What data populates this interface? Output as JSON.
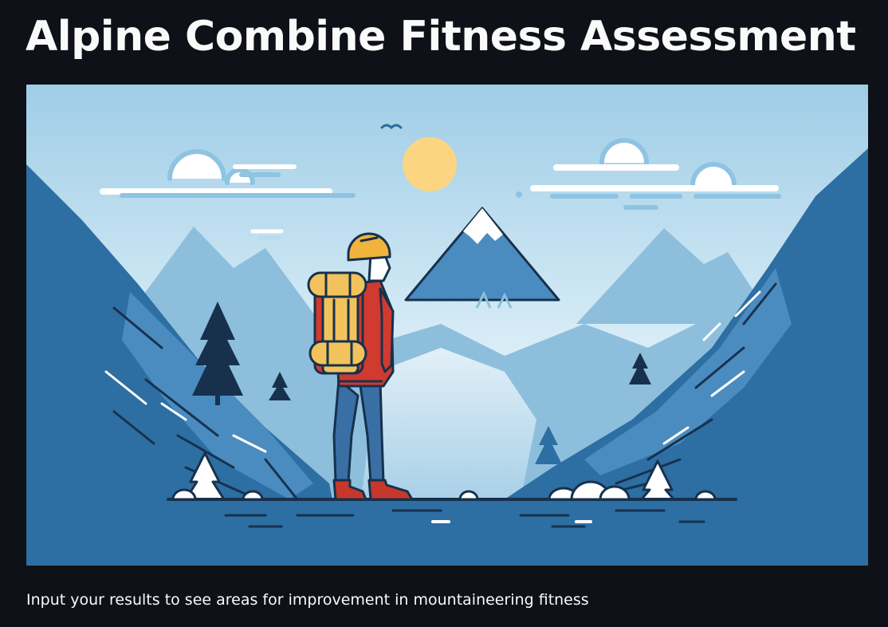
{
  "header": {
    "title": "Alpine Combine Fitness Assessment"
  },
  "hero": {
    "subject": "hiker-illustration",
    "colors": {
      "sky_top": "#9fcde6",
      "sky_bottom": "#eaf5fb",
      "mountain_dark": "#2d6ea3",
      "mountain_mid": "#4a8cbf",
      "mountain_light": "#8dbfdd",
      "sun": "#fcd582",
      "jacket": "#d13a2f",
      "backpack": "#f2c35c",
      "helmet": "#f0b43c",
      "pants": "#3a6fa6",
      "boots": "#c7372c",
      "outline": "#17314d"
    }
  },
  "intro": {
    "text": "Input your results to see areas for improvement in mountaineering fitness"
  }
}
